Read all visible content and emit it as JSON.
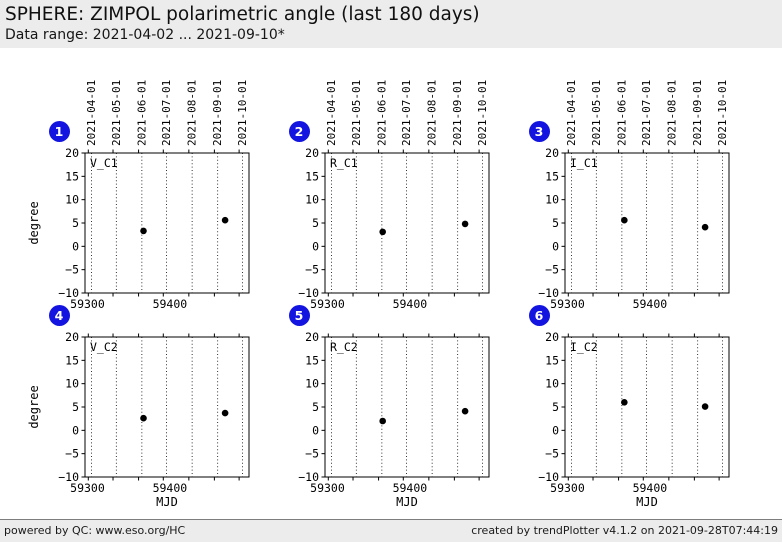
{
  "header": {
    "title": "SPHERE: ZIMPOL polarimetric angle (last 180 days)",
    "subtitle": "Data range: 2021-04-02 ... 2021-09-10*"
  },
  "footer": {
    "left": "powered by QC: www.eso.org/HC",
    "right": "created by trendPlotter v4.1.2 on 2021-09-28T07:44:19"
  },
  "colors": {
    "badge": "#1414e0",
    "badge_text": "#ffffff",
    "point": "#000000",
    "frame": "#000000",
    "chrome_bg": "#ececec"
  },
  "chart_common": {
    "xlabel": "MJD",
    "ylabel": "degree",
    "xlim": [
      59297,
      59496
    ],
    "ylim": [
      -10,
      20
    ],
    "xticks": [
      {
        "value": 59300,
        "label": "59300"
      },
      {
        "value": 59400,
        "label": "59400"
      }
    ],
    "yticks": [
      {
        "value": -10,
        "label": "−10"
      },
      {
        "value": -5,
        "label": "−5"
      },
      {
        "value": 0,
        "label": "0"
      },
      {
        "value": 5,
        "label": "5"
      },
      {
        "value": 10,
        "label": "10"
      },
      {
        "value": 15,
        "label": "15"
      },
      {
        "value": 20,
        "label": "20"
      }
    ],
    "month_gridlines": [
      {
        "label": "2021-04-01",
        "mjd": 59305
      },
      {
        "label": "2021-05-01",
        "mjd": 59335
      },
      {
        "label": "2021-06-01",
        "mjd": 59366
      },
      {
        "label": "2021-07-01",
        "mjd": 59396
      },
      {
        "label": "2021-08-01",
        "mjd": 59427
      },
      {
        "label": "2021-09-01",
        "mjd": 59458
      },
      {
        "label": "2021-10-01",
        "mjd": 59488
      }
    ],
    "grid": "dotted-vertical",
    "legend": false
  },
  "chart_data": [
    {
      "type": "scatter",
      "panel": "1",
      "label": "V_C1",
      "x": [
        59368,
        59467
      ],
      "y": [
        3.3,
        5.6
      ]
    },
    {
      "type": "scatter",
      "panel": "2",
      "label": "R_C1",
      "x": [
        59367,
        59467
      ],
      "y": [
        3.1,
        4.8
      ]
    },
    {
      "type": "scatter",
      "panel": "3",
      "label": "I_C1",
      "x": [
        59369,
        59467
      ],
      "y": [
        5.6,
        4.1
      ]
    },
    {
      "type": "scatter",
      "panel": "4",
      "label": "V_C2",
      "x": [
        59368,
        59467
      ],
      "y": [
        2.6,
        3.7
      ]
    },
    {
      "type": "scatter",
      "panel": "5",
      "label": "R_C2",
      "x": [
        59367,
        59467
      ],
      "y": [
        2.0,
        4.1
      ]
    },
    {
      "type": "scatter",
      "panel": "6",
      "label": "I_C2",
      "x": [
        59369,
        59467
      ],
      "y": [
        6.0,
        5.1
      ]
    }
  ]
}
